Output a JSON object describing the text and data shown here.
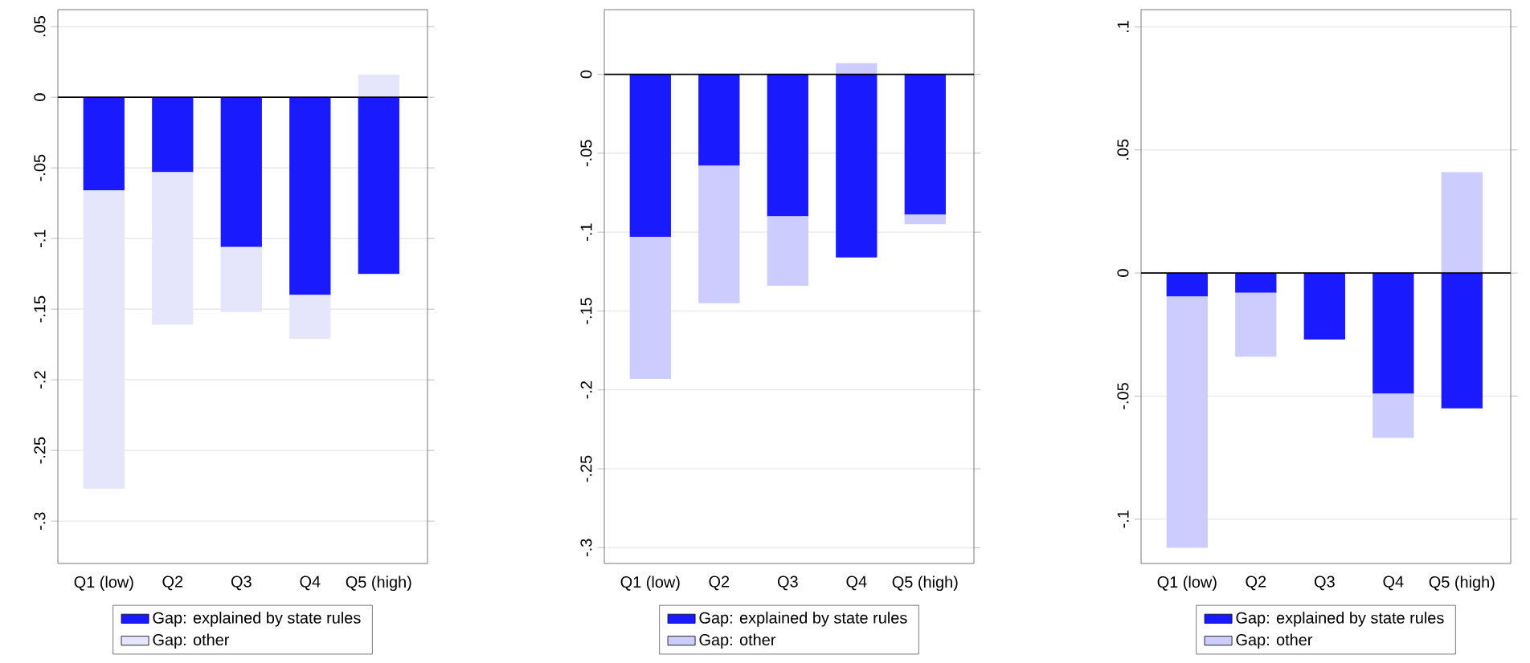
{
  "chart_data": [
    {
      "type": "bar",
      "stacked": true,
      "categories": [
        "Q1 (low)",
        "Q2",
        "Q3",
        "Q4",
        "Q5 (high)"
      ],
      "series": [
        {
          "name": "Gap: explained by state rules",
          "color": "#1a1aff",
          "values": [
            -0.066,
            -0.053,
            -0.106,
            -0.14,
            -0.125
          ]
        },
        {
          "name": "Gap: other",
          "color": "#e5e5fb",
          "values": [
            -0.211,
            -0.108,
            -0.046,
            -0.031,
            0.016
          ]
        }
      ],
      "ylim": [
        -0.33,
        0.062
      ],
      "yticks": [
        {
          "value": 0.05,
          "label": ".05"
        },
        0,
        {
          "value": -0.05,
          "label": "-.05"
        },
        {
          "value": -0.1,
          "label": "-.1"
        },
        {
          "value": -0.15,
          "label": "-.15"
        },
        {
          "value": -0.2,
          "label": "-.2"
        },
        {
          "value": -0.25,
          "label": "-.25"
        },
        {
          "value": -0.3,
          "label": "-.3"
        }
      ],
      "grid": "y",
      "legend": "bottom",
      "ref_lines": [
        {
          "axis": "y",
          "value": 0,
          "color": "#000000"
        }
      ]
    },
    {
      "type": "bar",
      "stacked": true,
      "categories": [
        "Q1 (low)",
        "Q2",
        "Q3",
        "Q4",
        "Q5 (high)"
      ],
      "series": [
        {
          "name": "Gap: explained by state rules",
          "color": "#1a1aff",
          "values": [
            -0.103,
            -0.058,
            -0.09,
            -0.116,
            -0.089
          ]
        },
        {
          "name": "Gap: other",
          "color": "#ccccff",
          "values": [
            -0.09,
            -0.087,
            -0.044,
            0.007,
            -0.006
          ]
        }
      ],
      "ylim": [
        -0.31,
        0.041
      ],
      "yticks": [
        0,
        {
          "value": -0.05,
          "label": "-.05"
        },
        {
          "value": -0.1,
          "label": "-.1"
        },
        {
          "value": -0.15,
          "label": "-.15"
        },
        {
          "value": -0.2,
          "label": "-.2"
        },
        {
          "value": -0.25,
          "label": "-.25"
        },
        {
          "value": -0.3,
          "label": "-.3"
        }
      ],
      "grid": "y",
      "legend": "bottom",
      "ref_lines": [
        {
          "axis": "y",
          "value": 0,
          "color": "#000000"
        }
      ]
    },
    {
      "type": "bar",
      "stacked": true,
      "categories": [
        "Q1 (low)",
        "Q2",
        "Q3",
        "Q4",
        "Q5 (high)"
      ],
      "series": [
        {
          "name": "Gap: explained by state rules",
          "color": "#1a1aff",
          "values": [
            -0.0096,
            -0.008,
            -0.027,
            -0.049,
            -0.055
          ]
        },
        {
          "name": "Gap: other",
          "color": "#ccccff",
          "values": [
            -0.102,
            -0.026,
            0,
            -0.018,
            0.041
          ]
        }
      ],
      "ylim": [
        -0.118,
        0.107
      ],
      "yticks": [
        {
          "value": 0.1,
          "label": ".1"
        },
        {
          "value": 0.05,
          "label": ".05"
        },
        0,
        {
          "value": -0.05,
          "label": "-.05"
        },
        {
          "value": -0.1,
          "label": "-.1"
        }
      ],
      "grid": "y",
      "legend": "bottom",
      "ref_lines": [
        {
          "axis": "y",
          "value": 0,
          "color": "#000000"
        }
      ]
    }
  ]
}
